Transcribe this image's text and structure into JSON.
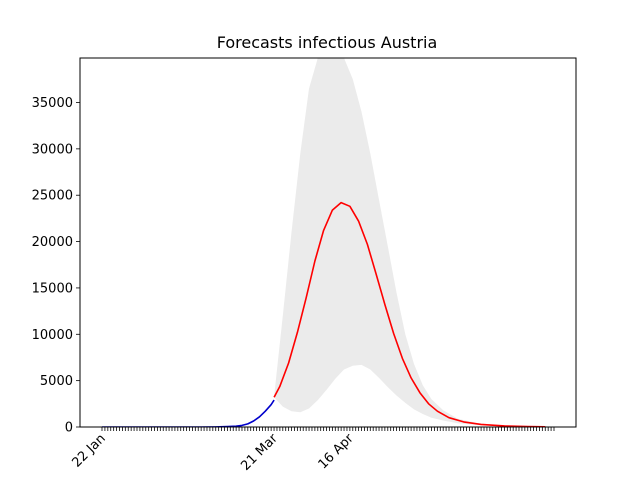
{
  "chart_data": {
    "type": "line",
    "title": "Forecasts infectious Austria",
    "xlabel": "",
    "ylabel": "",
    "ylim": [
      0,
      39800
    ],
    "xlim": [
      "2020-01-22",
      "2020-06-25"
    ],
    "grid": false,
    "x_tick_labels": [
      {
        "date": "2020-01-22",
        "label": "22 Jan"
      },
      {
        "date": "2020-03-21",
        "label": "21 Mar"
      },
      {
        "date": "2020-04-16",
        "label": "16 Apr"
      }
    ],
    "y_ticks": [
      0,
      5000,
      10000,
      15000,
      20000,
      25000,
      30000,
      35000
    ],
    "series": [
      {
        "color": "#0000cc",
        "points": [
          [
            "2020-01-22",
            0
          ],
          [
            "2020-02-10",
            0
          ],
          [
            "2020-02-25",
            5
          ],
          [
            "2020-03-01",
            15
          ],
          [
            "2020-03-05",
            40
          ],
          [
            "2020-03-08",
            90
          ],
          [
            "2020-03-10",
            170
          ],
          [
            "2020-03-12",
            330
          ],
          [
            "2020-03-14",
            650
          ],
          [
            "2020-03-16",
            1100
          ],
          [
            "2020-03-18",
            1700
          ],
          [
            "2020-03-20",
            2400
          ],
          [
            "2020-03-21",
            2900
          ]
        ]
      },
      {
        "color": "#ff0000",
        "points": [
          [
            "2020-03-21",
            3200
          ],
          [
            "2020-03-23",
            4400
          ],
          [
            "2020-03-26",
            6900
          ],
          [
            "2020-03-29",
            10200
          ],
          [
            "2020-04-01",
            13900
          ],
          [
            "2020-04-04",
            17900
          ],
          [
            "2020-04-07",
            21200
          ],
          [
            "2020-04-10",
            23400
          ],
          [
            "2020-04-13",
            24200
          ],
          [
            "2020-04-16",
            23800
          ],
          [
            "2020-04-19",
            22200
          ],
          [
            "2020-04-22",
            19700
          ],
          [
            "2020-04-25",
            16500
          ],
          [
            "2020-04-28",
            13200
          ],
          [
            "2020-05-01",
            10100
          ],
          [
            "2020-05-04",
            7400
          ],
          [
            "2020-05-07",
            5300
          ],
          [
            "2020-05-10",
            3700
          ],
          [
            "2020-05-13",
            2500
          ],
          [
            "2020-05-16",
            1700
          ],
          [
            "2020-05-20",
            1000
          ],
          [
            "2020-05-25",
            550
          ],
          [
            "2020-05-31",
            280
          ],
          [
            "2020-06-08",
            120
          ],
          [
            "2020-06-16",
            50
          ],
          [
            "2020-06-22",
            25
          ]
        ]
      }
    ],
    "band": {
      "color": "#ebebeb",
      "upper": [
        [
          "2020-03-21",
          3300
        ],
        [
          "2020-03-24",
          12000
        ],
        [
          "2020-03-27",
          21000
        ],
        [
          "2020-03-30",
          29500
        ],
        [
          "2020-04-02",
          36500
        ],
        [
          "2020-04-05",
          39800
        ],
        [
          "2020-04-08",
          39800
        ],
        [
          "2020-04-11",
          39800
        ],
        [
          "2020-04-14",
          39800
        ],
        [
          "2020-04-17",
          37500
        ],
        [
          "2020-04-20",
          34000
        ],
        [
          "2020-04-23",
          29500
        ],
        [
          "2020-04-26",
          24500
        ],
        [
          "2020-04-29",
          19500
        ],
        [
          "2020-05-02",
          14500
        ],
        [
          "2020-05-05",
          10000
        ],
        [
          "2020-05-08",
          6800
        ],
        [
          "2020-05-11",
          4500
        ],
        [
          "2020-05-14",
          3000
        ],
        [
          "2020-05-18",
          1800
        ],
        [
          "2020-05-23",
          900
        ],
        [
          "2020-05-30",
          400
        ],
        [
          "2020-06-08",
          150
        ],
        [
          "2020-06-22",
          30
        ]
      ],
      "lower": [
        [
          "2020-03-21",
          3200
        ],
        [
          "2020-03-24",
          2200
        ],
        [
          "2020-03-27",
          1700
        ],
        [
          "2020-03-30",
          1600
        ],
        [
          "2020-04-02",
          2000
        ],
        [
          "2020-04-05",
          2900
        ],
        [
          "2020-04-08",
          4000
        ],
        [
          "2020-04-11",
          5200
        ],
        [
          "2020-04-14",
          6200
        ],
        [
          "2020-04-17",
          6600
        ],
        [
          "2020-04-20",
          6700
        ],
        [
          "2020-04-23",
          6200
        ],
        [
          "2020-04-26",
          5300
        ],
        [
          "2020-04-29",
          4300
        ],
        [
          "2020-05-02",
          3400
        ],
        [
          "2020-05-05",
          2600
        ],
        [
          "2020-05-08",
          1900
        ],
        [
          "2020-05-11",
          1400
        ],
        [
          "2020-05-14",
          1000
        ],
        [
          "2020-05-18",
          700
        ],
        [
          "2020-05-23",
          400
        ],
        [
          "2020-05-30",
          200
        ],
        [
          "2020-06-08",
          80
        ],
        [
          "2020-06-22",
          20
        ]
      ]
    }
  }
}
